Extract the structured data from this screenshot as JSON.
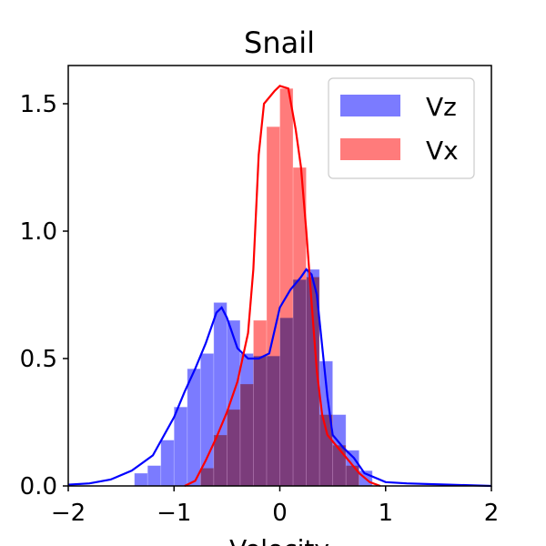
{
  "chart_data": {
    "type": "histogram",
    "title": "Snail",
    "xlabel": "Velocity",
    "ylabel": "",
    "xlim": [
      -2,
      2
    ],
    "ylim": [
      0,
      1.65
    ],
    "xticks": [
      -2,
      -1,
      0,
      1,
      2
    ],
    "xtick_labels": [
      "−2",
      "−1",
      "0",
      "1",
      "2"
    ],
    "yticks": [
      0.0,
      0.5,
      1.0,
      1.5
    ],
    "ytick_labels": [
      "0.0",
      "0.5",
      "1.0",
      "1.5"
    ],
    "grid": false,
    "legend_position": "top-right",
    "bin_width": 0.125,
    "series": [
      {
        "name": "Vz",
        "hist_color": "#7b7bff",
        "line_color": "#0000ff",
        "bins": [
          [
            -1.375,
            0.05
          ],
          [
            -1.25,
            0.08
          ],
          [
            -1.125,
            0.18
          ],
          [
            -1.0,
            0.31
          ],
          [
            -0.875,
            0.46
          ],
          [
            -0.75,
            0.52
          ],
          [
            -0.625,
            0.72
          ],
          [
            -0.5,
            0.65
          ],
          [
            -0.375,
            0.52
          ],
          [
            -0.25,
            0.51
          ],
          [
            -0.125,
            0.51
          ],
          [
            0.0,
            0.66
          ],
          [
            0.125,
            0.81
          ],
          [
            0.25,
            0.85
          ],
          [
            0.375,
            0.49
          ],
          [
            0.5,
            0.28
          ],
          [
            0.625,
            0.14
          ],
          [
            0.75,
            0.06
          ]
        ],
        "kde": [
          [
            -2.0,
            0.005
          ],
          [
            -1.8,
            0.01
          ],
          [
            -1.6,
            0.025
          ],
          [
            -1.4,
            0.06
          ],
          [
            -1.2,
            0.12
          ],
          [
            -1.0,
            0.27
          ],
          [
            -0.9,
            0.37
          ],
          [
            -0.8,
            0.46
          ],
          [
            -0.7,
            0.56
          ],
          [
            -0.6,
            0.68
          ],
          [
            -0.55,
            0.7
          ],
          [
            -0.5,
            0.66
          ],
          [
            -0.4,
            0.54
          ],
          [
            -0.3,
            0.5
          ],
          [
            -0.2,
            0.5
          ],
          [
            -0.1,
            0.52
          ],
          [
            0.0,
            0.7
          ],
          [
            0.1,
            0.77
          ],
          [
            0.2,
            0.82
          ],
          [
            0.25,
            0.85
          ],
          [
            0.3,
            0.83
          ],
          [
            0.35,
            0.75
          ],
          [
            0.4,
            0.55
          ],
          [
            0.45,
            0.35
          ],
          [
            0.5,
            0.2
          ],
          [
            0.6,
            0.15
          ],
          [
            0.7,
            0.11
          ],
          [
            0.8,
            0.05
          ],
          [
            1.0,
            0.015
          ],
          [
            1.2,
            0.01
          ],
          [
            1.6,
            0.005
          ],
          [
            2.0,
            0.0
          ]
        ]
      },
      {
        "name": "Vx",
        "hist_color": "#ff7b7b",
        "line_color": "#ff0000",
        "bins": [
          [
            -0.75,
            0.07
          ],
          [
            -0.625,
            0.2
          ],
          [
            -0.5,
            0.3
          ],
          [
            -0.375,
            0.4
          ],
          [
            -0.25,
            0.65
          ],
          [
            -0.125,
            1.41
          ],
          [
            0.0,
            1.56
          ],
          [
            0.125,
            1.25
          ],
          [
            0.25,
            0.82
          ],
          [
            0.375,
            0.28
          ],
          [
            0.5,
            0.16
          ],
          [
            0.625,
            0.08
          ]
        ],
        "kde": [
          [
            -0.9,
            0.0
          ],
          [
            -0.8,
            0.02
          ],
          [
            -0.7,
            0.1
          ],
          [
            -0.6,
            0.19
          ],
          [
            -0.5,
            0.29
          ],
          [
            -0.4,
            0.41
          ],
          [
            -0.3,
            0.6
          ],
          [
            -0.25,
            0.85
          ],
          [
            -0.2,
            1.3
          ],
          [
            -0.15,
            1.5
          ],
          [
            -0.05,
            1.55
          ],
          [
            0.0,
            1.57
          ],
          [
            0.08,
            1.56
          ],
          [
            0.15,
            1.4
          ],
          [
            0.2,
            1.25
          ],
          [
            0.25,
            1.0
          ],
          [
            0.3,
            0.72
          ],
          [
            0.35,
            0.45
          ],
          [
            0.4,
            0.28
          ],
          [
            0.45,
            0.2
          ],
          [
            0.55,
            0.15
          ],
          [
            0.65,
            0.1
          ],
          [
            0.75,
            0.05
          ],
          [
            0.85,
            0.015
          ],
          [
            0.95,
            0.0
          ]
        ]
      }
    ]
  }
}
